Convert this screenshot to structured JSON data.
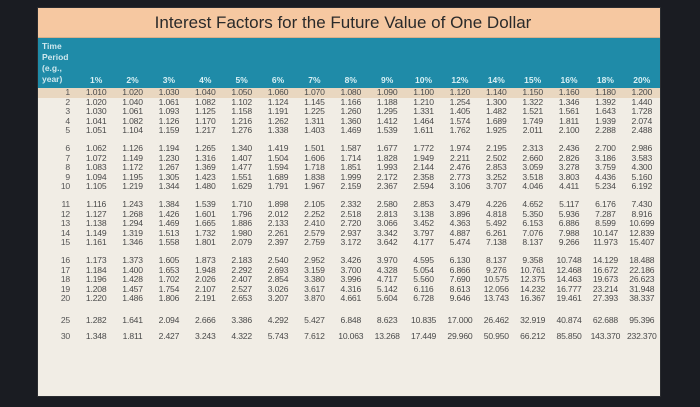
{
  "title": "Interest Factors for the Future Value of One Dollar",
  "header": {
    "period_label": [
      "Time",
      "Period",
      "(e.g.,",
      "year)"
    ],
    "rates": [
      "1%",
      "2%",
      "3%",
      "4%",
      "5%",
      "6%",
      "7%",
      "8%",
      "9%",
      "10%",
      "12%",
      "14%",
      "15%",
      "16%",
      "18%",
      "20%"
    ]
  },
  "colors": {
    "title_bg": "#f6c8a1",
    "header_bg": "#1f8ba8",
    "body_bg": "#f1ede5"
  },
  "rows": [
    {
      "year": "1",
      "values": [
        "1.010",
        "1.020",
        "1.030",
        "1.040",
        "1.050",
        "1.060",
        "1.070",
        "1.080",
        "1.090",
        "1.100",
        "1.120",
        "1.140",
        "1.150",
        "1.160",
        "1.180",
        "1.200"
      ]
    },
    {
      "year": "2",
      "values": [
        "1.020",
        "1.040",
        "1.061",
        "1.082",
        "1.102",
        "1.124",
        "1.145",
        "1.166",
        "1.188",
        "1.210",
        "1.254",
        "1.300",
        "1.322",
        "1.346",
        "1.392",
        "1.440"
      ]
    },
    {
      "year": "3",
      "values": [
        "1.030",
        "1.061",
        "1.093",
        "1.125",
        "1.158",
        "1.191",
        "1.225",
        "1.260",
        "1.295",
        "1.331",
        "1.405",
        "1.482",
        "1.521",
        "1.561",
        "1.643",
        "1.728"
      ]
    },
    {
      "year": "4",
      "values": [
        "1.041",
        "1.082",
        "1.126",
        "1.170",
        "1.216",
        "1.262",
        "1.311",
        "1.360",
        "1.412",
        "1.464",
        "1.574",
        "1.689",
        "1.749",
        "1.811",
        "1.939",
        "2.074"
      ]
    },
    {
      "year": "5",
      "values": [
        "1.051",
        "1.104",
        "1.159",
        "1.217",
        "1.276",
        "1.338",
        "1.403",
        "1.469",
        "1.539",
        "1.611",
        "1.762",
        "1.925",
        "2.011",
        "2.100",
        "2.288",
        "2.488"
      ]
    },
    {
      "year": "6",
      "values": [
        "1.062",
        "1.126",
        "1.194",
        "1.265",
        "1.340",
        "1.419",
        "1.501",
        "1.587",
        "1.677",
        "1.772",
        "1.974",
        "2.195",
        "2.313",
        "2.436",
        "2.700",
        "2.986"
      ]
    },
    {
      "year": "7",
      "values": [
        "1.072",
        "1.149",
        "1.230",
        "1.316",
        "1.407",
        "1.504",
        "1.606",
        "1.714",
        "1.828",
        "1.949",
        "2.211",
        "2.502",
        "2.660",
        "2.826",
        "3.186",
        "3.583"
      ]
    },
    {
      "year": "8",
      "values": [
        "1.083",
        "1.172",
        "1.267",
        "1.369",
        "1.477",
        "1.594",
        "1.718",
        "1.851",
        "1.993",
        "2.144",
        "2.476",
        "2.853",
        "3.059",
        "3.278",
        "3.759",
        "4.300"
      ]
    },
    {
      "year": "9",
      "values": [
        "1.094",
        "1.195",
        "1.305",
        "1.423",
        "1.551",
        "1.689",
        "1.838",
        "1.999",
        "2.172",
        "2.358",
        "2.773",
        "3.252",
        "3.518",
        "3.803",
        "4.436",
        "5.160"
      ]
    },
    {
      "year": "10",
      "values": [
        "1.105",
        "1.219",
        "1.344",
        "1.480",
        "1.629",
        "1.791",
        "1.967",
        "2.159",
        "2.367",
        "2.594",
        "3.106",
        "3.707",
        "4.046",
        "4.411",
        "5.234",
        "6.192"
      ]
    },
    {
      "year": "11",
      "values": [
        "1.116",
        "1.243",
        "1.384",
        "1.539",
        "1.710",
        "1.898",
        "2.105",
        "2.332",
        "2.580",
        "2.853",
        "3.479",
        "4.226",
        "4.652",
        "5.117",
        "6.176",
        "7.430"
      ]
    },
    {
      "year": "12",
      "values": [
        "1.127",
        "1.268",
        "1.426",
        "1.601",
        "1.796",
        "2.012",
        "2.252",
        "2.518",
        "2.813",
        "3.138",
        "3.896",
        "4.818",
        "5.350",
        "5.936",
        "7.287",
        "8.916"
      ]
    },
    {
      "year": "13",
      "values": [
        "1.138",
        "1.294",
        "1.469",
        "1.665",
        "1.886",
        "2.133",
        "2.410",
        "2.720",
        "3.066",
        "3.452",
        "4.363",
        "5.492",
        "6.153",
        "6.886",
        "8.599",
        "10.699"
      ]
    },
    {
      "year": "14",
      "values": [
        "1.149",
        "1.319",
        "1.513",
        "1.732",
        "1.980",
        "2.261",
        "2.579",
        "2.937",
        "3.342",
        "3.797",
        "4.887",
        "6.261",
        "7.076",
        "7.988",
        "10.147",
        "12.839"
      ]
    },
    {
      "year": "15",
      "values": [
        "1.161",
        "1.346",
        "1.558",
        "1.801",
        "2.079",
        "2.397",
        "2.759",
        "3.172",
        "3.642",
        "4.177",
        "5.474",
        "7.138",
        "8.137",
        "9.266",
        "11.973",
        "15.407"
      ]
    },
    {
      "year": "16",
      "values": [
        "1.173",
        "1.373",
        "1.605",
        "1.873",
        "2.183",
        "2.540",
        "2.952",
        "3.426",
        "3.970",
        "4.595",
        "6.130",
        "8.137",
        "9.358",
        "10.748",
        "14.129",
        "18.488"
      ]
    },
    {
      "year": "17",
      "values": [
        "1.184",
        "1.400",
        "1.653",
        "1.948",
        "2.292",
        "2.693",
        "3.159",
        "3.700",
        "4.328",
        "5.054",
        "6.866",
        "9.276",
        "10.761",
        "12.468",
        "16.672",
        "22.186"
      ]
    },
    {
      "year": "18",
      "values": [
        "1.196",
        "1.428",
        "1.702",
        "2.026",
        "2.407",
        "2.854",
        "3.380",
        "3.996",
        "4.717",
        "5.560",
        "7.690",
        "10.575",
        "12.375",
        "14.463",
        "19.673",
        "26.623"
      ]
    },
    {
      "year": "19",
      "values": [
        "1.208",
        "1.457",
        "1.754",
        "2.107",
        "2.527",
        "3.026",
        "3.617",
        "4.316",
        "5.142",
        "6.116",
        "8.613",
        "12.056",
        "14.232",
        "16.777",
        "23.214",
        "31.948"
      ]
    },
    {
      "year": "20",
      "values": [
        "1.220",
        "1.486",
        "1.806",
        "2.191",
        "2.653",
        "3.207",
        "3.870",
        "4.661",
        "5.604",
        "6.728",
        "9.646",
        "13.743",
        "16.367",
        "19.461",
        "27.393",
        "38.337"
      ]
    },
    {
      "year": "25",
      "values": [
        "1.282",
        "1.641",
        "2.094",
        "2.666",
        "3.386",
        "4.292",
        "5.427",
        "6.848",
        "8.623",
        "10.835",
        "17.000",
        "26.462",
        "32.919",
        "40.874",
        "62.688",
        "95.396"
      ]
    },
    {
      "year": "30",
      "values": [
        "1.348",
        "1.811",
        "2.427",
        "3.243",
        "4.322",
        "5.743",
        "7.612",
        "10.063",
        "13.268",
        "17.449",
        "29.960",
        "50.950",
        "66.212",
        "85.850",
        "143.370",
        "232.370"
      ]
    }
  ]
}
